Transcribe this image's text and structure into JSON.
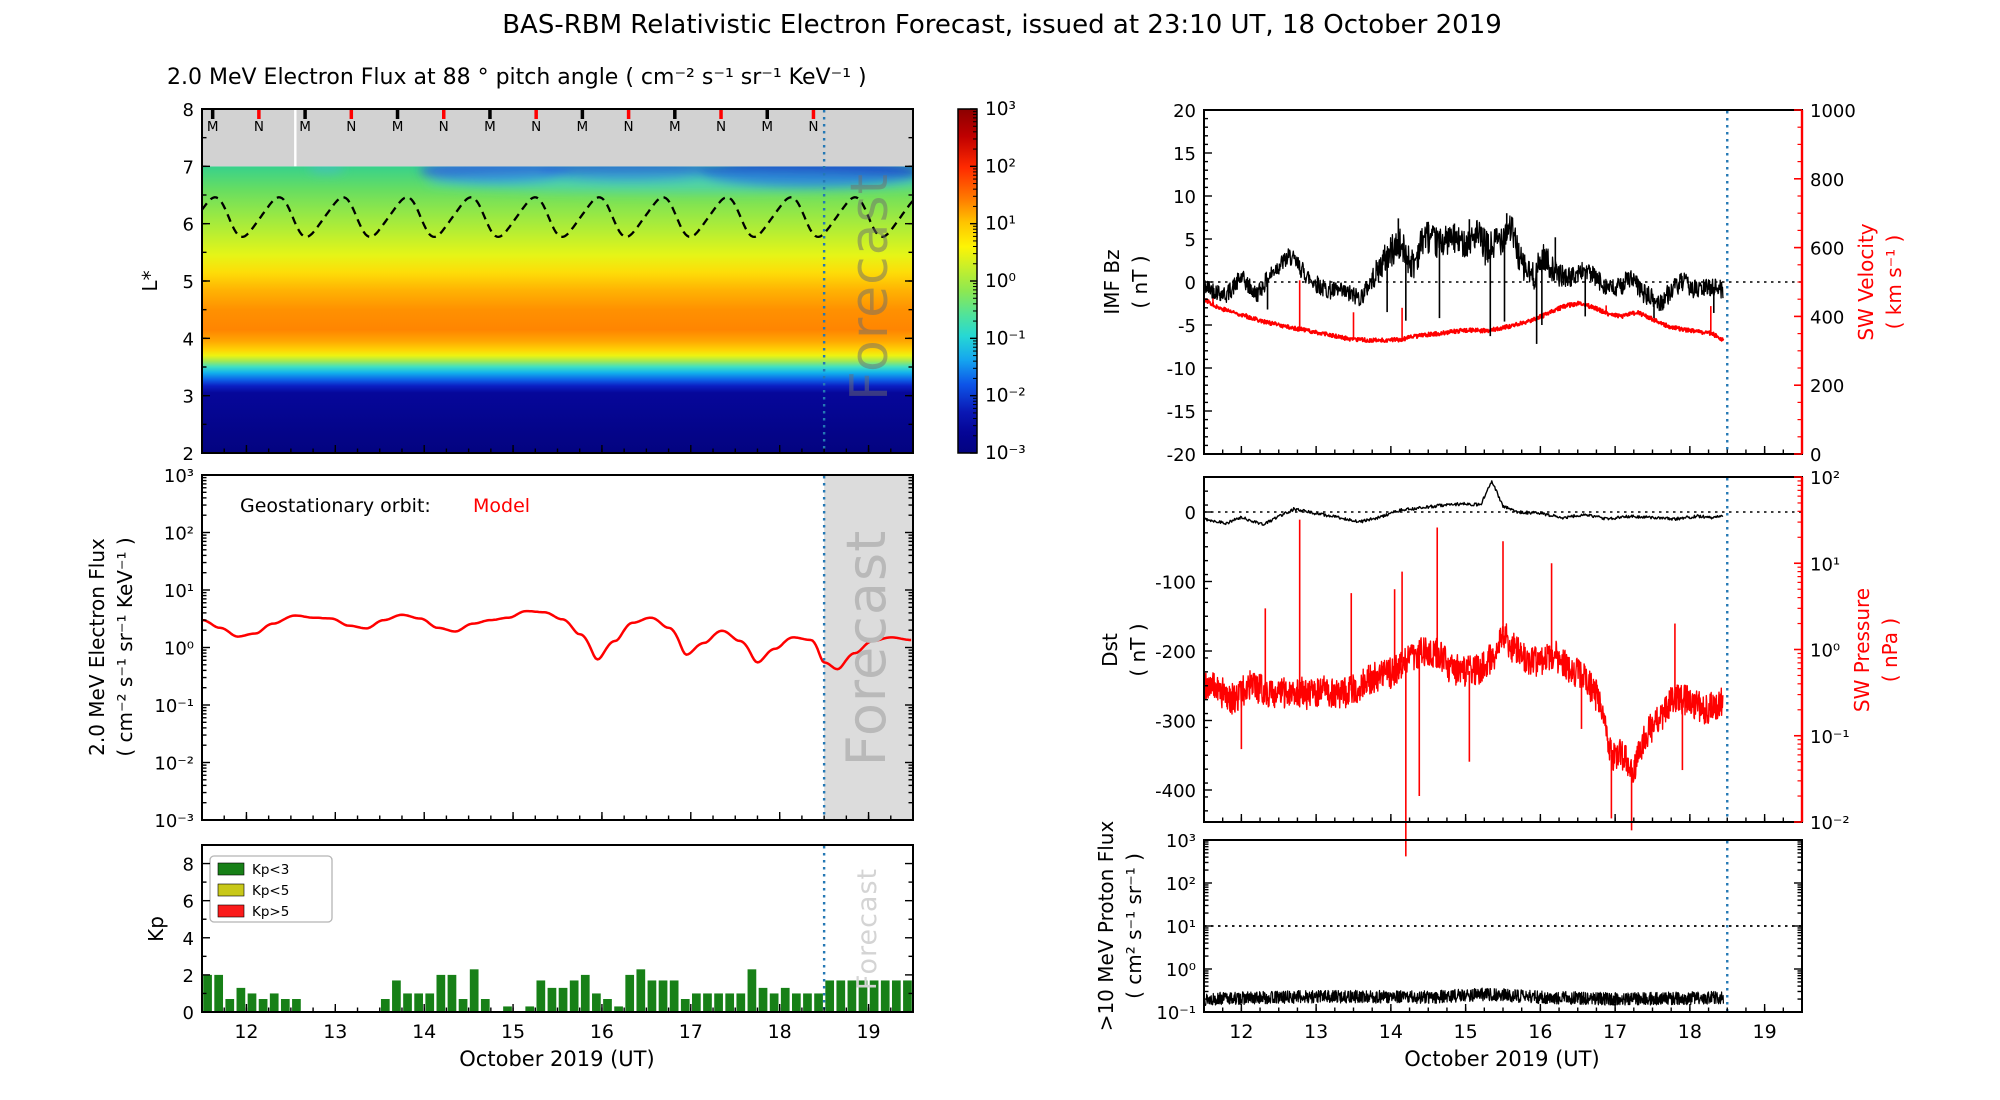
{
  "title": "BAS-RBM Relativistic Electron Forecast, issued at 23:10 UT, 18 October 2019",
  "xaxis": {
    "label": "October 2019 (UT)",
    "ticks": [
      12,
      13,
      14,
      15,
      16,
      17,
      18,
      19
    ],
    "range_days": [
      11.5,
      19.5
    ]
  },
  "forecast": {
    "watermark": "Forecast",
    "boundary_day": 18.5,
    "data_end_day": 18.45,
    "line_color": "#2478b4",
    "shade_color": "#dcdcdc"
  },
  "colors": {
    "red": "#ff0000",
    "black": "#000000",
    "bar_green": "#178017",
    "legend_yellow": "#c8c819",
    "legend_red": "#fb1b1b",
    "gray_band": "#d2d2d2"
  },
  "chart_data": [
    {
      "id": "electron_flux_spectrogram",
      "type": "heatmap",
      "title": "2.0 MeV Electron Flux at 88 ° pitch angle ( cm⁻² s⁻¹ sr⁻¹ KeV⁻¹ )",
      "ylabel": "L*",
      "yticks": [
        8,
        7,
        6,
        5,
        4,
        3,
        2
      ],
      "ylim": [
        2,
        8
      ],
      "gray_band_lstar": [
        7,
        8
      ],
      "satellite_markers": {
        "labels": [
          "M",
          "N",
          "M",
          "N",
          "M",
          "N",
          "M",
          "N",
          "M",
          "N",
          "M",
          "N",
          "M",
          "N"
        ],
        "days": [
          11.62,
          12.14,
          12.66,
          13.18,
          13.7,
          14.22,
          14.74,
          15.26,
          15.78,
          16.3,
          16.82,
          17.34,
          17.86,
          18.38
        ],
        "m_color": "#000000",
        "n_color": "#ff0000"
      },
      "white_gap_day": 12.55,
      "plasmapause_dashed_line": {
        "mean_l": 6.115,
        "amplitude_l": 0.335,
        "period_days": 0.72,
        "phase_day": 11.44,
        "second_harmonic": 0.045
      },
      "lstar_color_stops": [
        [
          7.0,
          "#38d18c"
        ],
        [
          6.6,
          "#66dd62"
        ],
        [
          6.2,
          "#92e748"
        ],
        [
          5.8,
          "#bdef2f"
        ],
        [
          5.45,
          "#e6f517"
        ],
        [
          5.15,
          "#fddd08"
        ],
        [
          4.85,
          "#ffb403"
        ],
        [
          4.5,
          "#ff9101"
        ],
        [
          4.15,
          "#ff8501"
        ],
        [
          3.95,
          "#ffa702"
        ],
        [
          3.8,
          "#ffd204"
        ],
        [
          3.7,
          "#eef310"
        ],
        [
          3.6,
          "#9fe957"
        ],
        [
          3.5,
          "#3fdfc5"
        ],
        [
          3.4,
          "#12b2ec"
        ],
        [
          3.28,
          "#0d62e8"
        ],
        [
          3.17,
          "#0b1fc4"
        ],
        [
          3.05,
          "#06079a"
        ],
        [
          2.0,
          "#030380"
        ]
      ],
      "high_l_blue_patches": [
        {
          "day_center": 14.8,
          "day_halfwidth": 0.85,
          "l_center": 6.93,
          "l_halfheight": 0.22,
          "color": "#2e66dd",
          "opacity": 0.85
        },
        {
          "day_center": 16.3,
          "day_halfwidth": 1.0,
          "l_center": 6.95,
          "l_halfheight": 0.2,
          "color": "#2a5fd8",
          "opacity": 0.8
        },
        {
          "day_center": 18.35,
          "day_halfwidth": 1.25,
          "l_center": 6.9,
          "l_halfheight": 0.26,
          "color": "#1c49cf",
          "opacity": 0.9
        },
        {
          "day_center": 16.9,
          "day_halfwidth": 2.9,
          "l_center": 6.72,
          "l_halfheight": 0.18,
          "color": "#3fc9e9",
          "opacity": 0.45
        },
        {
          "day_center": 12.9,
          "day_halfwidth": 0.2,
          "l_center": 6.97,
          "l_halfheight": 0.1,
          "color": "#49b8d8",
          "opacity": 0.5
        }
      ],
      "colorbar": {
        "ticks": [
          "10³",
          "10²",
          "10¹",
          "10⁰",
          "10⁻¹",
          "10⁻²",
          "10⁻³"
        ],
        "gradient_stops": [
          [
            0,
            "#8b0000"
          ],
          [
            0.08,
            "#c00000"
          ],
          [
            0.17,
            "#ff2a00"
          ],
          [
            0.26,
            "#ff7a00"
          ],
          [
            0.33,
            "#ffc400"
          ],
          [
            0.4,
            "#fdf405"
          ],
          [
            0.46,
            "#c8ef2a"
          ],
          [
            0.53,
            "#8ce852"
          ],
          [
            0.6,
            "#4fe39c"
          ],
          [
            0.66,
            "#26d8d4"
          ],
          [
            0.73,
            "#15a5ef"
          ],
          [
            0.8,
            "#0d55e8"
          ],
          [
            0.88,
            "#0a18b4"
          ],
          [
            0.94,
            "#050596"
          ],
          [
            1,
            "#030380"
          ]
        ]
      }
    },
    {
      "id": "geostationary_electron_flux",
      "type": "line",
      "annotation_prefix": "Geostationary orbit:",
      "annotation_series": "Model",
      "series_color": "#ff0000",
      "ylabel_line1": "2.0 MeV Electron Flux",
      "ylabel_line2": "( cm⁻² s⁻¹ sr⁻¹ KeV⁻¹ )",
      "yticks": [
        "10³",
        "10²",
        "10¹",
        "10⁰",
        "10⁻¹",
        "10⁻²",
        "10⁻³"
      ],
      "ylim_log10": [
        -3,
        3
      ],
      "x": [
        11.5,
        11.7,
        11.9,
        12.1,
        12.3,
        12.55,
        12.75,
        12.95,
        13.15,
        13.35,
        13.55,
        13.75,
        13.95,
        14.15,
        14.35,
        14.55,
        14.75,
        14.95,
        15.15,
        15.35,
        15.55,
        15.75,
        15.95,
        16.15,
        16.35,
        16.55,
        16.75,
        16.95,
        17.15,
        17.35,
        17.55,
        17.75,
        17.95,
        18.15,
        18.35,
        18.5,
        18.65,
        18.85,
        19.05,
        19.25,
        19.48
      ],
      "y": [
        3.0,
        2.2,
        1.55,
        1.75,
        2.6,
        3.6,
        3.3,
        3.2,
        2.4,
        2.15,
        3.0,
        3.7,
        3.2,
        2.2,
        1.9,
        2.6,
        3.0,
        3.3,
        4.3,
        4.1,
        3.1,
        1.7,
        0.62,
        1.3,
        2.7,
        3.3,
        2.2,
        0.75,
        1.2,
        1.95,
        1.3,
        0.55,
        0.95,
        1.5,
        1.35,
        0.55,
        0.42,
        0.8,
        1.3,
        1.5,
        1.35
      ]
    },
    {
      "id": "kp_index",
      "type": "bar",
      "ylabel": "Kp",
      "yticks": [
        0,
        2,
        4,
        6,
        8
      ],
      "ylim": [
        0,
        9
      ],
      "legend": [
        {
          "label": "Kp<3",
          "color": "#178017"
        },
        {
          "label": "Kp<5",
          "color": "#c8c819"
        },
        {
          "label": "Kp>5",
          "color": "#fb1b1b"
        }
      ],
      "bar_start_day": 11.5,
      "bar_interval_days": 0.125,
      "values": [
        2,
        2,
        0.7,
        1.3,
        1,
        0.7,
        1,
        0.7,
        0.7,
        0,
        0,
        0,
        0,
        0,
        0,
        0,
        0.7,
        1.7,
        1,
        1,
        1,
        2,
        2,
        0.7,
        2.3,
        0.7,
        0,
        0.3,
        0,
        0.3,
        1.7,
        1.3,
        1.3,
        1.7,
        2,
        1,
        0.7,
        0.3,
        2,
        2.3,
        1.7,
        1.7,
        1.7,
        0.7,
        1,
        1,
        1,
        1,
        1,
        2.3,
        1.3,
        1,
        1.3,
        1,
        1,
        1,
        1.7,
        1.7,
        1.7,
        1.7,
        1.7,
        1.7,
        1.7,
        1.7
      ]
    },
    {
      "id": "imf_bz_and_sw_velocity",
      "type": "line",
      "left_axis": {
        "label_line1": "IMF Bz",
        "label_line2": "( nT )",
        "ticks": [
          20,
          15,
          10,
          5,
          0,
          -5,
          -10,
          -15,
          -20
        ],
        "ylim": [
          -20,
          20
        ],
        "color": "#000000"
      },
      "right_axis": {
        "label_line1": "SW Velocity",
        "label_line2": "( km s⁻¹ )",
        "ticks": [
          1000,
          800,
          600,
          400,
          200,
          0
        ],
        "ylim": [
          0,
          1000
        ],
        "color": "#ff0000"
      },
      "zero_dotted_line": 0,
      "bz": {
        "x": [
          11.5,
          11.8,
          12.0,
          12.2,
          12.45,
          12.65,
          12.9,
          13.1,
          13.35,
          13.6,
          13.8,
          13.95,
          14.1,
          14.3,
          14.45,
          14.6,
          14.8,
          15.0,
          15.15,
          15.3,
          15.45,
          15.6,
          15.75,
          15.9,
          16.05,
          16.2,
          16.4,
          16.6,
          16.8,
          17.0,
          17.2,
          17.4,
          17.6,
          17.75,
          17.9,
          18.1,
          18.3,
          18.45
        ],
        "y": [
          -0.5,
          -1.5,
          0.5,
          -1.5,
          1.5,
          3.0,
          0.5,
          -0.8,
          -1.2,
          -1.8,
          1.0,
          3.0,
          4.5,
          2.0,
          5.5,
          4.5,
          5.0,
          4.5,
          5.5,
          3.5,
          5.0,
          6.5,
          2.0,
          0.5,
          3.0,
          1.0,
          0.5,
          1.5,
          0.0,
          -1.0,
          0.5,
          -1.5,
          -2.5,
          -1.0,
          0.0,
          -1.0,
          -0.5,
          -1.0
        ],
        "jitter_profile": {
          "x": [
            11.5,
            13.7,
            13.95,
            14.6,
            15.0,
            15.3,
            16.1,
            16.4,
            17.4,
            18.45
          ],
          "a": [
            1.0,
            1.1,
            2.0,
            1.8,
            1.6,
            2.2,
            1.6,
            1.1,
            1.2,
            1.1
          ]
        },
        "spikes_down": [
          [
            12.35,
            -3.2
          ],
          [
            13.95,
            -3.5
          ],
          [
            14.2,
            -4.5
          ],
          [
            14.65,
            -4.2
          ],
          [
            15.33,
            -6.3
          ],
          [
            15.52,
            -4.6
          ],
          [
            15.95,
            -7.2
          ],
          [
            16.02,
            -5
          ],
          [
            16.6,
            -4
          ],
          [
            17.52,
            -4.2
          ],
          [
            18.32,
            -3.6
          ]
        ],
        "spikes_up": [
          [
            14.1,
            7.4
          ],
          [
            14.5,
            7.0
          ],
          [
            14.85,
            6.8
          ],
          [
            15.05,
            7.3
          ],
          [
            15.55,
            8.0
          ],
          [
            16.2,
            5.2
          ]
        ]
      },
      "velocity": {
        "x": [
          11.5,
          11.7,
          12.0,
          12.3,
          12.6,
          12.9,
          13.2,
          13.5,
          13.8,
          14.1,
          14.4,
          14.7,
          15.0,
          15.3,
          15.6,
          15.9,
          16.1,
          16.3,
          16.5,
          16.7,
          16.9,
          17.1,
          17.3,
          17.5,
          17.7,
          17.9,
          18.1,
          18.3,
          18.45
        ],
        "y": [
          450,
          425,
          405,
          385,
          370,
          358,
          345,
          332,
          330,
          332,
          345,
          352,
          360,
          358,
          372,
          390,
          408,
          428,
          438,
          428,
          408,
          400,
          412,
          392,
          372,
          362,
          356,
          350,
          332
        ],
        "jitter": 6,
        "spikes_up": [
          [
            11.62,
            470
          ],
          [
            12.78,
            505
          ],
          [
            13.5,
            412
          ],
          [
            14.15,
            425
          ],
          [
            16.88,
            432
          ],
          [
            18.28,
            430
          ]
        ]
      }
    },
    {
      "id": "dst_and_sw_pressure",
      "type": "line",
      "left_axis": {
        "label_line1": "Dst",
        "label_line2": "( nT )",
        "ticks": [
          0,
          -100,
          -200,
          -300,
          -400
        ],
        "ylim": [
          -443,
          50
        ],
        "color": "#000000"
      },
      "right_axis": {
        "label_line1": "SW Pressure",
        "label_line2": "( nPa )",
        "ticks": [
          "10²",
          "10¹",
          "10⁰",
          "10⁻¹",
          "10⁻²"
        ],
        "ylim_log10": [
          -2,
          2
        ],
        "color": "#ff0000"
      },
      "zero_dotted_line": 0,
      "dst": {
        "x": [
          11.5,
          11.8,
          12.0,
          12.3,
          12.5,
          12.7,
          13.0,
          13.3,
          13.6,
          13.9,
          14.1,
          14.4,
          14.7,
          15.0,
          15.2,
          15.35,
          15.5,
          15.7,
          16.0,
          16.3,
          16.6,
          16.9,
          17.2,
          17.5,
          17.8,
          18.1,
          18.3,
          18.45
        ],
        "y": [
          -10,
          -16,
          -8,
          -18,
          -6,
          4,
          -2,
          -8,
          -14,
          -6,
          2,
          6,
          10,
          12,
          10,
          45,
          8,
          0,
          -2,
          -8,
          -4,
          -10,
          -6,
          -8,
          -10,
          -6,
          -8,
          -6
        ],
        "jitter": 2.2
      },
      "pressure": {
        "x": [
          11.5,
          11.7,
          11.9,
          12.1,
          12.3,
          12.5,
          12.7,
          12.9,
          13.1,
          13.3,
          13.5,
          13.7,
          13.9,
          14.05,
          14.2,
          14.35,
          14.5,
          14.65,
          14.8,
          15.0,
          15.2,
          15.4,
          15.5,
          15.6,
          15.8,
          16.0,
          16.2,
          16.4,
          16.6,
          16.8,
          16.95,
          17.1,
          17.25,
          17.4,
          17.6,
          17.8,
          18.0,
          18.2,
          18.35,
          18.45
        ],
        "p": [
          0.42,
          0.33,
          0.26,
          0.38,
          0.33,
          0.3,
          0.34,
          0.3,
          0.33,
          0.3,
          0.34,
          0.45,
          0.5,
          0.55,
          0.8,
          0.9,
          1.0,
          0.85,
          0.6,
          0.55,
          0.6,
          0.9,
          1.6,
          1.1,
          0.8,
          0.7,
          0.85,
          0.6,
          0.45,
          0.25,
          0.06,
          0.06,
          0.04,
          0.1,
          0.16,
          0.28,
          0.25,
          0.2,
          0.22,
          0.25
        ],
        "log_jitter": 0.18,
        "spikes_up": [
          [
            12.32,
            3
          ],
          [
            12.78,
            32
          ],
          [
            13.47,
            4.5
          ],
          [
            14.05,
            5
          ],
          [
            14.15,
            8
          ],
          [
            14.62,
            26
          ],
          [
            15.5,
            18
          ],
          [
            16.15,
            10
          ],
          [
            17.8,
            2
          ]
        ],
        "spikes_down": [
          [
            12.0,
            0.07
          ],
          [
            14.2,
            0.004
          ],
          [
            14.38,
            0.02
          ],
          [
            15.05,
            0.05
          ],
          [
            16.55,
            0.12
          ],
          [
            16.95,
            0.011
          ],
          [
            17.22,
            0.008
          ],
          [
            17.9,
            0.04
          ]
        ]
      }
    },
    {
      "id": "proton_flux",
      "type": "line",
      "ylabel_line1": ">10 MeV Proton Flux",
      "ylabel_line2": "( cm² s⁻¹ sr⁻¹ )",
      "yticks": [
        "10³",
        "10²",
        "10¹",
        "10⁰",
        "10⁻¹"
      ],
      "ylim_log10": [
        -1,
        3
      ],
      "threshold_dotted_line": 10,
      "band": {
        "x": [
          11.5,
          13.0,
          14.5,
          15.3,
          16.0,
          17.0,
          18.0,
          18.45
        ],
        "center": [
          0.2,
          0.23,
          0.22,
          0.26,
          0.22,
          0.2,
          0.21,
          0.22
        ],
        "log_jitter": 0.15
      }
    }
  ]
}
